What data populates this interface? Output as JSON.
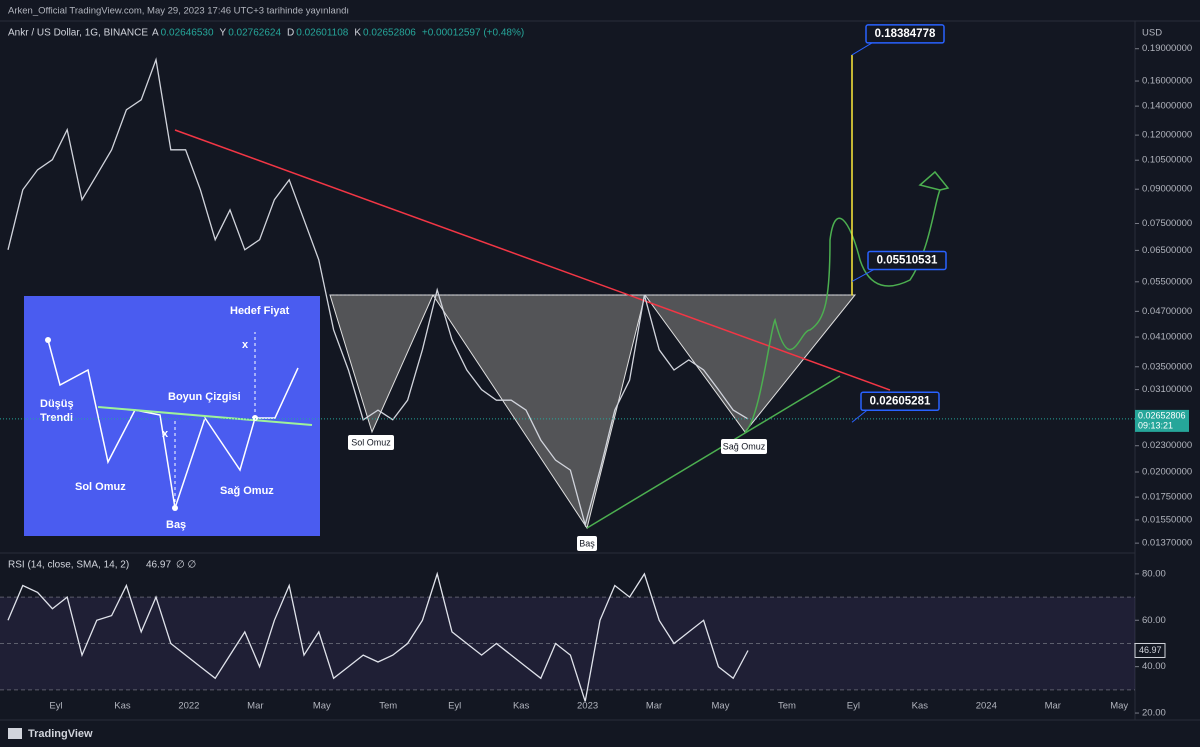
{
  "header": {
    "publisher": "Arken_Official TradingView.com, May 29, 2023 17:46 UTC+3 tarihinde yayınlandı"
  },
  "footer": {
    "brand": "TradingView"
  },
  "chart_data": [
    {
      "type": "line",
      "title": "Ankr / US Dollar, 1G, BINANCE",
      "legend_values": [
        {
          "key": "A",
          "text": "0.02646530"
        },
        {
          "key": "Y",
          "text": "0.02762624"
        },
        {
          "key": "D",
          "text": "0.02601108"
        },
        {
          "key": "K",
          "text": "0.02652806"
        },
        {
          "key": "",
          "text": "+0.00012597 (+0.48%)"
        }
      ],
      "currency": "USD",
      "log_scale": true,
      "ylim": [
        0.013,
        0.219
      ],
      "yticks": [
        {
          "value": 0.19,
          "label": "0.19000000"
        },
        {
          "value": 0.16,
          "label": "0.16000000"
        },
        {
          "value": 0.14,
          "label": "0.14000000"
        },
        {
          "value": 0.12,
          "label": "0.12000000"
        },
        {
          "value": 0.105,
          "label": "0.10500000"
        },
        {
          "value": 0.09,
          "label": "0.09000000"
        },
        {
          "value": 0.075,
          "label": "0.07500000"
        },
        {
          "value": 0.065,
          "label": "0.06500000"
        },
        {
          "value": 0.055,
          "label": "0.05500000"
        },
        {
          "value": 0.047,
          "label": "0.04700000"
        },
        {
          "value": 0.041,
          "label": "0.04100000"
        },
        {
          "value": 0.035,
          "label": "0.03500000"
        },
        {
          "value": 0.031,
          "label": "0.03100000"
        },
        {
          "value": 0.023,
          "label": "0.02300000"
        },
        {
          "value": 0.02,
          "label": "0.02000000"
        },
        {
          "value": 0.0175,
          "label": "0.01750000"
        },
        {
          "value": 0.0155,
          "label": "0.01550000"
        },
        {
          "value": 0.0137,
          "label": "0.01370000"
        }
      ],
      "series": [
        {
          "name": "Ankr / US Dollar",
          "color": "#d1d4dc",
          "values": [
            0.0652,
            0.0897,
            0.0998,
            0.1053,
            0.1235,
            0.0851,
            0.0971,
            0.111,
            0.1373,
            0.1448,
            0.1792,
            0.111,
            0.111,
            0.0897,
            0.0688,
            0.0806,
            0.0652,
            0.0688,
            0.0851,
            0.0946,
            0.0765,
            0.0618,
            0.0426,
            0.0344,
            0.0264,
            0.0278,
            0.0264,
            0.0293,
            0.0383,
            0.0527,
            0.0404,
            0.0344,
            0.031,
            0.0293,
            0.0293,
            0.0278,
            0.0237,
            0.0213,
            0.0202,
            0.0151,
            0.0202,
            0.0278,
            0.0326,
            0.0513,
            0.0383,
            0.0344,
            0.0363,
            0.0344,
            0.031,
            0.0278,
            0.02652806
          ]
        }
      ],
      "countdown": "09:13:21",
      "price_levels": [
        0.18384778,
        0.05510531,
        0.02605281
      ],
      "pattern_labels": [
        "Sol Omuz",
        "Baş",
        "Sağ Omuz"
      ]
    },
    {
      "type": "line",
      "title": "RSI (14, close, SMA, 14, 2)",
      "title_suffix": "∅ ∅",
      "ylim": [
        17,
        89
      ],
      "yticks": [
        {
          "value": 80,
          "label": "80.00"
        },
        {
          "value": 60,
          "label": "60.00"
        },
        {
          "value": 40,
          "label": "40.00"
        },
        {
          "value": 20,
          "label": "20.00"
        }
      ],
      "levels": [
        70,
        50,
        30
      ],
      "series": [
        {
          "name": "RSI",
          "color": "#e0e3eb",
          "values": [
            60,
            75,
            72,
            65,
            70,
            45,
            60,
            62,
            75,
            55,
            70,
            50,
            45,
            40,
            35,
            45,
            55,
            40,
            60,
            75,
            45,
            55,
            35,
            40,
            45,
            42,
            45,
            50,
            60,
            80,
            55,
            50,
            45,
            50,
            45,
            40,
            35,
            50,
            45,
            25,
            60,
            75,
            70,
            80,
            60,
            50,
            55,
            60,
            40,
            35,
            46.97
          ]
        }
      ]
    }
  ],
  "time_axis": {
    "labels": [
      "Eyl",
      "Kas",
      "2022",
      "Mar",
      "May",
      "Tem",
      "Eyl",
      "Kas",
      "2023",
      "Mar",
      "May",
      "Tem",
      "Eyl",
      "Kas",
      "2024",
      "Mar",
      "May"
    ]
  },
  "inset": {
    "target": "Hedef Fiyat",
    "x_top": "x",
    "trend": [
      "Düşüş",
      "Trendi"
    ],
    "neckline": "Boyun Çizgisi",
    "x_mid": "x",
    "left_shoulder": "Sol Omuz",
    "right_shoulder": "Sağ Omuz",
    "head": "Baş"
  }
}
